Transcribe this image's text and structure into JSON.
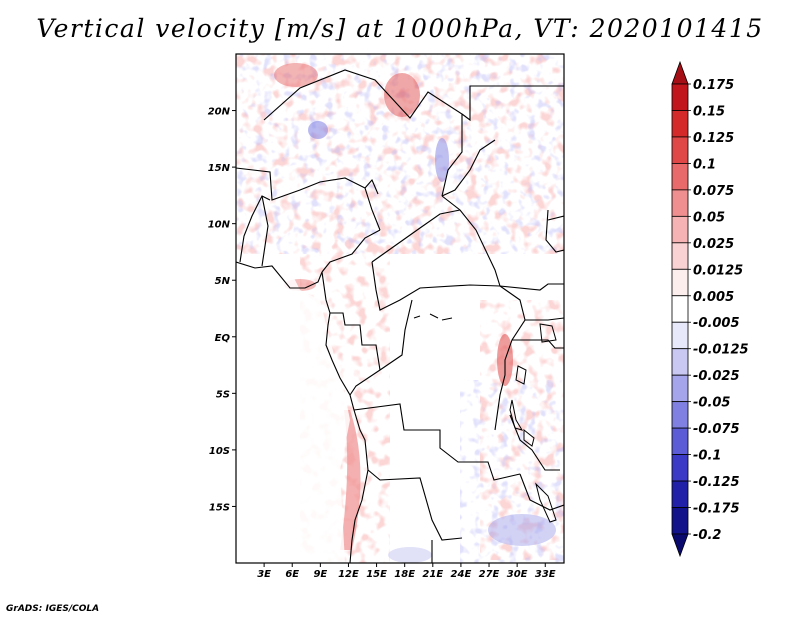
{
  "title": "Vertical velocity [m/s] at 1000hPa, VT: 2020101415",
  "credit": "GrADS: IGES/COLA",
  "map": {
    "lon_range": [
      0,
      35
    ],
    "lat_range": [
      -20,
      25
    ],
    "lat_ticks": [
      {
        "value": 20,
        "label": "20N"
      },
      {
        "value": 15,
        "label": "15N"
      },
      {
        "value": 10,
        "label": "10N"
      },
      {
        "value": 5,
        "label": "5N"
      },
      {
        "value": 0,
        "label": "EQ"
      },
      {
        "value": -5,
        "label": "5S"
      },
      {
        "value": -10,
        "label": "10S"
      },
      {
        "value": -15,
        "label": "15S"
      }
    ],
    "lon_ticks": [
      {
        "value": 3,
        "label": "3E"
      },
      {
        "value": 6,
        "label": "6E"
      },
      {
        "value": 9,
        "label": "9E"
      },
      {
        "value": 12,
        "label": "12E"
      },
      {
        "value": 15,
        "label": "15E"
      },
      {
        "value": 18,
        "label": "18E"
      },
      {
        "value": 21,
        "label": "21E"
      },
      {
        "value": 24,
        "label": "24E"
      },
      {
        "value": 27,
        "label": "27E"
      },
      {
        "value": 30,
        "label": "30E"
      },
      {
        "value": 33,
        "label": "33E"
      }
    ]
  },
  "colorbar": {
    "levels": [
      "0.175",
      "0.15",
      "0.125",
      "0.1",
      "0.075",
      "0.05",
      "0.025",
      "0.0125",
      "0.005",
      "-0.005",
      "-0.0125",
      "-0.025",
      "-0.05",
      "-0.075",
      "-0.1",
      "-0.125",
      "-0.175",
      "-0.2"
    ],
    "colors": [
      "#a50f15",
      "#c0161c",
      "#d42a2a",
      "#e04848",
      "#e86a6a",
      "#ef8f8f",
      "#f5b3b3",
      "#f9d3d3",
      "#fdeeee",
      "#ffffff",
      "#e8e8fb",
      "#c8c8f3",
      "#a5a5ec",
      "#8080e2",
      "#5c5cd6",
      "#3a3ac6",
      "#2020a8",
      "#12128a",
      "#0a0a6e"
    ]
  }
}
